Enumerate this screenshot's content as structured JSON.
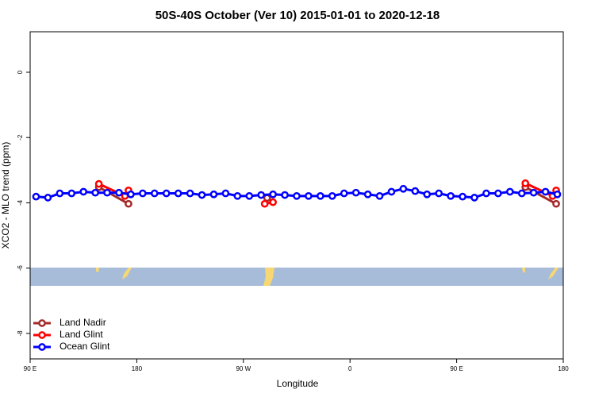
{
  "chart_data": {
    "type": "line",
    "title": "50S-40S October (Ver 10)   2015-01-01 to 2020-12-18",
    "x_label": "Longitude",
    "y_label": "XCO2 - MLO trend (ppm)",
    "xlim": [
      90,
      540
    ],
    "xticks": [
      {
        "value": 90,
        "label": "90 E"
      },
      {
        "value": 180,
        "label": "180"
      },
      {
        "value": 270,
        "label": "90 W"
      },
      {
        "value": 360,
        "label": "0"
      },
      {
        "value": 450,
        "label": "90 E"
      },
      {
        "value": 540,
        "label": "180"
      }
    ],
    "ylim": [
      -8.78,
      1.24
    ],
    "yticks": [
      0,
      -2,
      -4,
      -6,
      -8
    ],
    "legend": "bottom-left",
    "series": [
      {
        "name": "Land Nadir",
        "color": "#a52a2a",
        "x": [
          148,
          173,
          null,
          290,
          null,
          508,
          534
        ],
        "values": [
          -3.52,
          -4.03,
          null,
          -3.85,
          null,
          -3.52,
          -4.03
        ]
      },
      {
        "name": "Land Glint",
        "color": "#ff0000",
        "x": [
          148,
          170,
          173,
          null,
          288,
          295,
          null,
          508,
          531,
          534
        ],
        "values": [
          -3.42,
          -3.79,
          -3.62,
          null,
          -4.03,
          -3.98,
          null,
          -3.4,
          -3.79,
          -3.62
        ]
      },
      {
        "name": "Ocean Glint",
        "color": "#0000ff",
        "x": [
          95,
          105,
          115,
          125,
          135,
          145,
          155,
          165,
          175,
          185,
          195,
          205,
          215,
          225,
          235,
          245,
          255,
          265,
          275,
          285,
          295,
          305,
          315,
          325,
          335,
          345,
          355,
          365,
          375,
          385,
          395,
          405,
          415,
          425,
          435,
          445,
          455,
          465,
          475,
          485,
          495,
          505,
          515,
          525,
          535
        ],
        "values": [
          -3.81,
          -3.84,
          -3.71,
          -3.71,
          -3.66,
          -3.69,
          -3.69,
          -3.69,
          -3.74,
          -3.71,
          -3.71,
          -3.71,
          -3.71,
          -3.71,
          -3.76,
          -3.74,
          -3.71,
          -3.79,
          -3.79,
          -3.76,
          -3.74,
          -3.76,
          -3.79,
          -3.79,
          -3.79,
          -3.79,
          -3.71,
          -3.69,
          -3.74,
          -3.79,
          -3.66,
          -3.57,
          -3.64,
          -3.74,
          -3.71,
          -3.79,
          -3.81,
          -3.84,
          -3.71,
          -3.71,
          -3.66,
          -3.71,
          -3.69,
          -3.66,
          -3.74
        ]
      }
    ]
  }
}
